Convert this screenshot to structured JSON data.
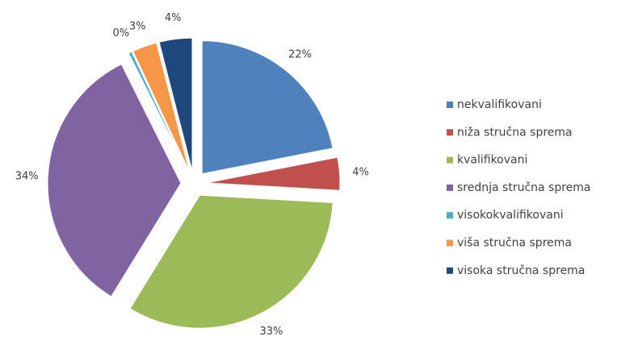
{
  "chart_data": {
    "type": "pie",
    "categories": [
      "nekvalifikovani",
      "niža stručna sprema",
      "kvalifikovani",
      "srednja stručna sprema",
      "visokokvalifikovani",
      "viša stručna sprema",
      "visoka stručna sprema"
    ],
    "values": [
      22,
      4,
      33,
      34,
      0.4,
      3,
      4
    ],
    "value_labels": [
      "22%",
      "4%",
      "33%",
      "34%",
      "0%",
      "3%",
      "4%"
    ],
    "colors": [
      "#4f81bd",
      "#c0504d",
      "#9bbb59",
      "#8064a2",
      "#4bacc6",
      "#f79646",
      "#1f497d"
    ],
    "legend": "right"
  }
}
